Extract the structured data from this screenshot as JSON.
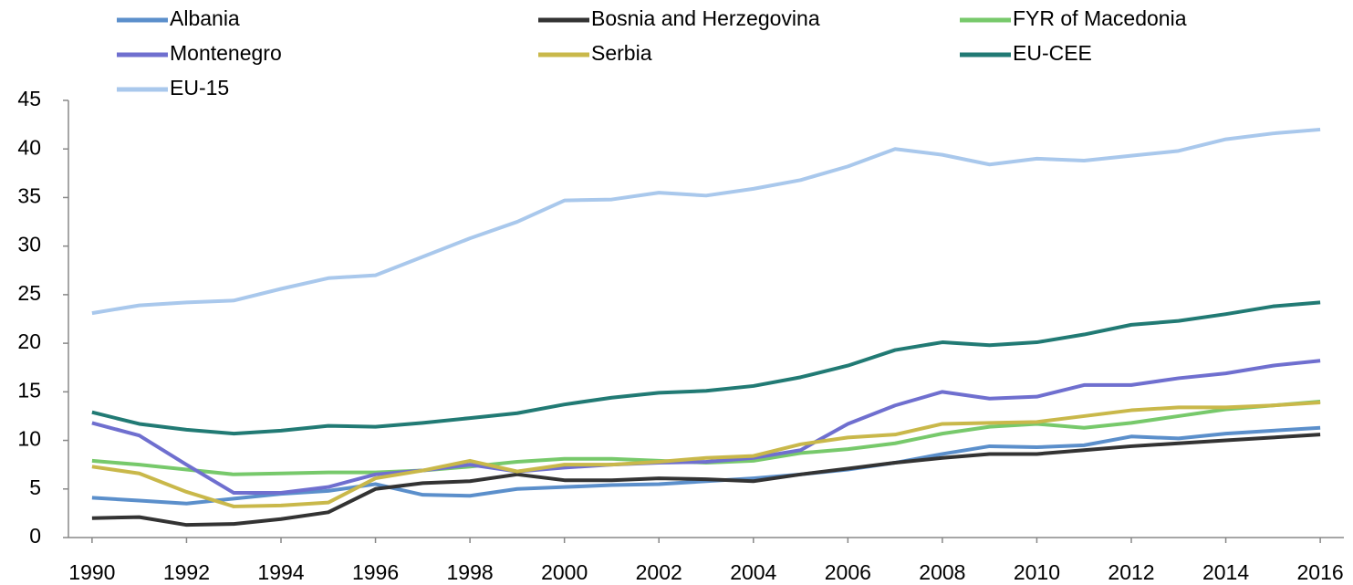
{
  "chart_data": {
    "type": "line",
    "x": [
      1990,
      1991,
      1992,
      1993,
      1994,
      1995,
      1996,
      1997,
      1998,
      1999,
      2000,
      2001,
      2002,
      2003,
      2004,
      2005,
      2006,
      2007,
      2008,
      2009,
      2010,
      2011,
      2012,
      2013,
      2014,
      2015,
      2016
    ],
    "xlim": [
      1989.5,
      2016.5
    ],
    "xticks": [
      1990,
      1992,
      1994,
      1996,
      1998,
      2000,
      2002,
      2004,
      2006,
      2008,
      2010,
      2012,
      2014,
      2016
    ],
    "ylim": [
      0,
      45
    ],
    "yticks": [
      0,
      5,
      10,
      15,
      20,
      25,
      30,
      35,
      40,
      45
    ],
    "series": [
      {
        "name": "Albania",
        "color": "#5b8fcb",
        "values": [
          4.1,
          3.8,
          3.5,
          4.0,
          4.5,
          4.8,
          5.5,
          4.4,
          4.3,
          5.0,
          5.2,
          5.4,
          5.5,
          5.8,
          6.1,
          6.5,
          7.0,
          7.7,
          8.6,
          9.4,
          9.3,
          9.5,
          10.4,
          10.2,
          10.7,
          11.0,
          11.3
        ]
      },
      {
        "name": "Bosnia and Herzegovina",
        "color": "#333333",
        "values": [
          2.0,
          2.1,
          1.3,
          1.4,
          1.9,
          2.6,
          5.0,
          5.6,
          5.8,
          6.5,
          5.9,
          5.9,
          6.1,
          6.0,
          5.8,
          6.5,
          7.1,
          7.7,
          8.2,
          8.6,
          8.6,
          9.0,
          9.4,
          9.7,
          10.0,
          10.3,
          10.6
        ]
      },
      {
        "name": "FYR of Macedonia",
        "color": "#77c96b",
        "values": [
          7.9,
          7.5,
          7.0,
          6.5,
          6.6,
          6.7,
          6.7,
          6.9,
          7.3,
          7.8,
          8.1,
          8.1,
          7.9,
          7.7,
          7.9,
          8.7,
          9.1,
          9.7,
          10.7,
          11.4,
          11.7,
          11.3,
          11.8,
          12.5,
          13.2,
          13.6,
          14.0
        ]
      },
      {
        "name": "Montenegro",
        "color": "#6f6fcf",
        "values": [
          11.8,
          10.5,
          7.5,
          4.6,
          4.6,
          5.2,
          6.5,
          6.9,
          7.5,
          6.8,
          7.2,
          7.5,
          7.7,
          7.8,
          8.2,
          9.0,
          11.7,
          13.6,
          15.0,
          14.3,
          14.5,
          15.7,
          15.7,
          16.4,
          16.9,
          17.7,
          18.2
        ]
      },
      {
        "name": "Serbia",
        "color": "#c9b84a",
        "values": [
          7.3,
          6.6,
          4.7,
          3.2,
          3.3,
          3.6,
          6.1,
          6.9,
          7.9,
          6.8,
          7.5,
          7.5,
          7.8,
          8.2,
          8.4,
          9.6,
          10.3,
          10.6,
          11.7,
          11.8,
          11.9,
          12.5,
          13.1,
          13.4,
          13.4,
          13.6,
          13.9
        ]
      },
      {
        "name": "EU-CEE",
        "color": "#217a74",
        "values": [
          12.9,
          11.7,
          11.1,
          10.7,
          11.0,
          11.5,
          11.4,
          11.8,
          12.3,
          12.8,
          13.7,
          14.4,
          14.9,
          15.1,
          15.6,
          16.5,
          17.7,
          19.3,
          20.1,
          19.8,
          20.1,
          20.9,
          21.9,
          22.3,
          23.0,
          23.8,
          24.2
        ]
      },
      {
        "name": "EU-15",
        "color": "#a9c8ec",
        "values": [
          23.1,
          23.9,
          24.2,
          24.4,
          25.6,
          26.7,
          27.0,
          28.9,
          30.8,
          32.5,
          34.7,
          34.8,
          35.5,
          35.2,
          35.9,
          36.8,
          38.2,
          40.0,
          39.4,
          38.4,
          39.0,
          38.8,
          39.3,
          39.8,
          41.0,
          41.6,
          42.0
        ]
      }
    ]
  }
}
